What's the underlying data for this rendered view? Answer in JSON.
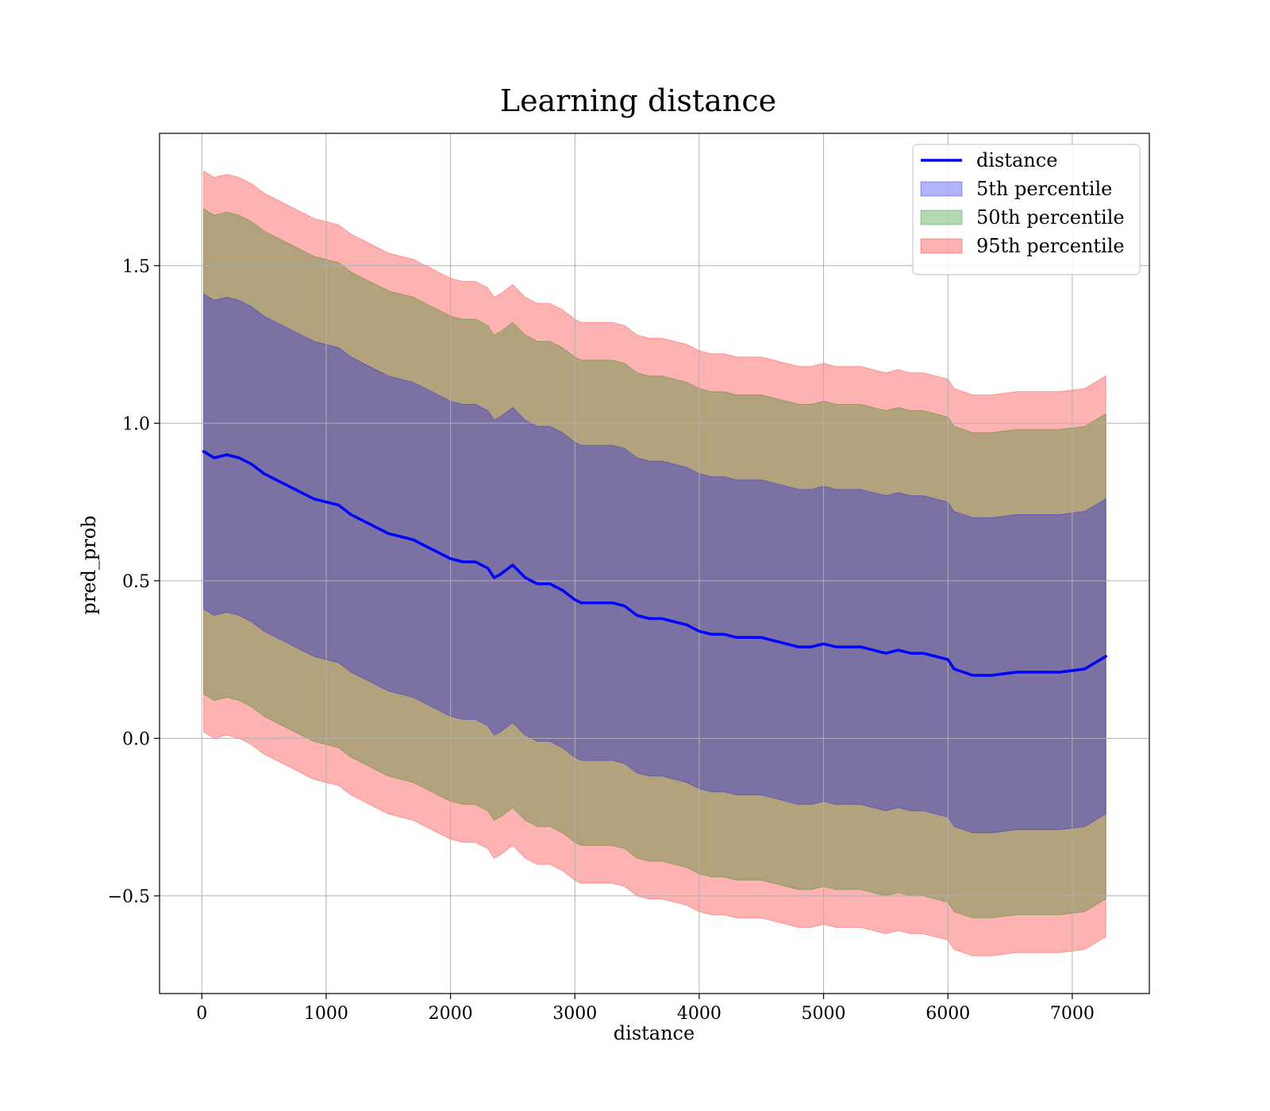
{
  "chart_data": {
    "type": "area",
    "title": "Learning distance",
    "xlabel": "distance",
    "ylabel": "pred_prob",
    "xlim": [
      -340,
      7620
    ],
    "ylim": [
      -0.81,
      1.92
    ],
    "xticks": [
      0,
      1000,
      2000,
      3000,
      4000,
      5000,
      6000,
      7000
    ],
    "xtick_labels": [
      "0",
      "1000",
      "2000",
      "3000",
      "4000",
      "5000",
      "6000",
      "7000"
    ],
    "yticks": [
      -0.5,
      0.0,
      0.5,
      1.0,
      1.5
    ],
    "ytick_labels": [
      "−0.5",
      "0.0",
      "0.5",
      "1.0",
      "1.5"
    ],
    "grid": true,
    "legend_position": "top-right",
    "legend": [
      {
        "label": "distance",
        "kind": "line",
        "color": "#0000ff"
      },
      {
        "label": "5th percentile",
        "kind": "patch",
        "color": "#0000ff"
      },
      {
        "label": "50th percentile",
        "kind": "patch",
        "color": "#008000"
      },
      {
        "label": "95th percentile",
        "kind": "patch",
        "color": "#ff0000"
      }
    ],
    "x": [
      15,
      100,
      200,
      300,
      400,
      500,
      600,
      700,
      800,
      900,
      1000,
      1100,
      1200,
      1300,
      1400,
      1500,
      1600,
      1700,
      1800,
      1900,
      2000,
      2100,
      2200,
      2300,
      2350,
      2400,
      2500,
      2550,
      2600,
      2700,
      2800,
      2900,
      3000,
      3050,
      3100,
      3200,
      3300,
      3400,
      3500,
      3600,
      3700,
      3800,
      3900,
      4000,
      4100,
      4200,
      4300,
      4400,
      4500,
      4600,
      4700,
      4800,
      4900,
      5000,
      5100,
      5200,
      5300,
      5400,
      5500,
      5600,
      5700,
      5800,
      5900,
      6000,
      6050,
      6200,
      6350,
      6550,
      6700,
      6900,
      7100,
      7270
    ],
    "series": [
      {
        "name": "distance",
        "color": "#0000ff",
        "values": [
          0.91,
          0.89,
          0.9,
          0.89,
          0.87,
          0.84,
          0.82,
          0.8,
          0.78,
          0.76,
          0.75,
          0.74,
          0.71,
          0.69,
          0.67,
          0.65,
          0.64,
          0.63,
          0.61,
          0.59,
          0.57,
          0.56,
          0.56,
          0.54,
          0.51,
          0.52,
          0.55,
          0.53,
          0.51,
          0.49,
          0.49,
          0.47,
          0.44,
          0.43,
          0.43,
          0.43,
          0.43,
          0.42,
          0.39,
          0.38,
          0.38,
          0.37,
          0.36,
          0.34,
          0.33,
          0.33,
          0.32,
          0.32,
          0.32,
          0.31,
          0.3,
          0.29,
          0.29,
          0.3,
          0.29,
          0.29,
          0.29,
          0.28,
          0.27,
          0.28,
          0.27,
          0.27,
          0.26,
          0.25,
          0.22,
          0.2,
          0.2,
          0.21,
          0.21,
          0.21,
          0.22,
          0.26
        ]
      }
    ],
    "bands": [
      {
        "name": "5th percentile",
        "color": "#0000ff",
        "opacity": 0.3,
        "half_width": 0.5
      },
      {
        "name": "50th percentile",
        "color": "#008000",
        "opacity": 0.3,
        "half_width": 0.77
      },
      {
        "name": "95th percentile",
        "color": "#ff0000",
        "opacity": 0.3,
        "half_width": 0.89
      }
    ]
  }
}
